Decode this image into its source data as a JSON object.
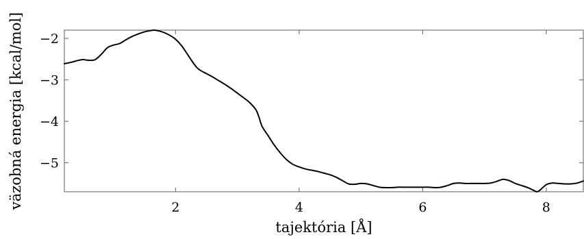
{
  "chart_data": {
    "type": "line",
    "title": "",
    "xlabel": "tajektória [Å]",
    "ylabel": "väzobná energia [kcal/mol]",
    "xlim": [
      0.2,
      8.6
    ],
    "ylim": [
      -5.7,
      -1.8
    ],
    "xticks": [
      2,
      4,
      6,
      8
    ],
    "yticks": [
      -2,
      -3,
      -4,
      -5
    ],
    "xtick_labels": [
      "2",
      "4",
      "6",
      "8"
    ],
    "ytick_labels": [
      "−2",
      "−3",
      "−4",
      "−5"
    ],
    "grid": false,
    "legend": "none",
    "series": [
      {
        "x": [
          0.2,
          0.3,
          0.4,
          0.5,
          0.6,
          0.7,
          0.8,
          0.9,
          1.0,
          1.1,
          1.2,
          1.3,
          1.4,
          1.5,
          1.6,
          1.65,
          1.7,
          1.8,
          1.9,
          2.0,
          2.1,
          2.2,
          2.3,
          2.35,
          2.4,
          2.5,
          2.6,
          2.7,
          2.8,
          2.9,
          3.0,
          3.1,
          3.2,
          3.3,
          3.35,
          3.4,
          3.5,
          3.6,
          3.7,
          3.8,
          3.9,
          4.0,
          4.1,
          4.2,
          4.3,
          4.4,
          4.5,
          4.6,
          4.7,
          4.8,
          4.9,
          5.0,
          5.1,
          5.2,
          5.3,
          5.4,
          5.5,
          5.6,
          5.7,
          5.8,
          5.9,
          6.0,
          6.1,
          6.2,
          6.3,
          6.4,
          6.5,
          6.6,
          6.7,
          6.8,
          6.9,
          7.0,
          7.1,
          7.2,
          7.3,
          7.4,
          7.5,
          7.6,
          7.7,
          7.8,
          7.85,
          7.9,
          8.0,
          8.1,
          8.2,
          8.3,
          8.4,
          8.5,
          8.6
        ],
        "y": [
          -2.61,
          -2.58,
          -2.54,
          -2.51,
          -2.53,
          -2.51,
          -2.38,
          -2.22,
          -2.16,
          -2.12,
          -2.03,
          -1.95,
          -1.89,
          -1.84,
          -1.81,
          -1.8,
          -1.81,
          -1.85,
          -1.92,
          -2.02,
          -2.18,
          -2.4,
          -2.62,
          -2.71,
          -2.77,
          -2.85,
          -2.93,
          -3.02,
          -3.11,
          -3.21,
          -3.32,
          -3.43,
          -3.55,
          -3.72,
          -3.9,
          -4.12,
          -4.35,
          -4.58,
          -4.77,
          -4.93,
          -5.04,
          -5.1,
          -5.15,
          -5.18,
          -5.21,
          -5.25,
          -5.29,
          -5.35,
          -5.43,
          -5.51,
          -5.52,
          -5.5,
          -5.51,
          -5.55,
          -5.59,
          -5.6,
          -5.6,
          -5.59,
          -5.59,
          -5.59,
          -5.59,
          -5.59,
          -5.59,
          -5.6,
          -5.59,
          -5.55,
          -5.5,
          -5.49,
          -5.5,
          -5.5,
          -5.5,
          -5.5,
          -5.49,
          -5.45,
          -5.4,
          -5.43,
          -5.5,
          -5.55,
          -5.6,
          -5.67,
          -5.7,
          -5.66,
          -5.53,
          -5.49,
          -5.5,
          -5.51,
          -5.51,
          -5.49,
          -5.44
        ]
      }
    ]
  }
}
